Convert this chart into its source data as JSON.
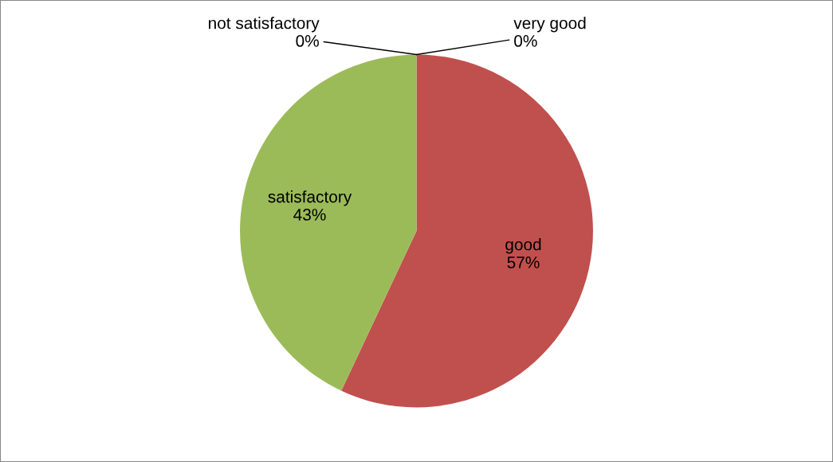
{
  "chart_data": {
    "type": "pie",
    "categories": [
      "very good",
      "good",
      "satisfactory",
      "not satisfactory"
    ],
    "values": [
      0,
      57,
      43,
      0
    ],
    "colors": [
      "#4f81bd",
      "#c0504d",
      "#9bbb59",
      "#8064a2"
    ],
    "value_labels": [
      "0%",
      "57%",
      "43%",
      "0%"
    ]
  }
}
